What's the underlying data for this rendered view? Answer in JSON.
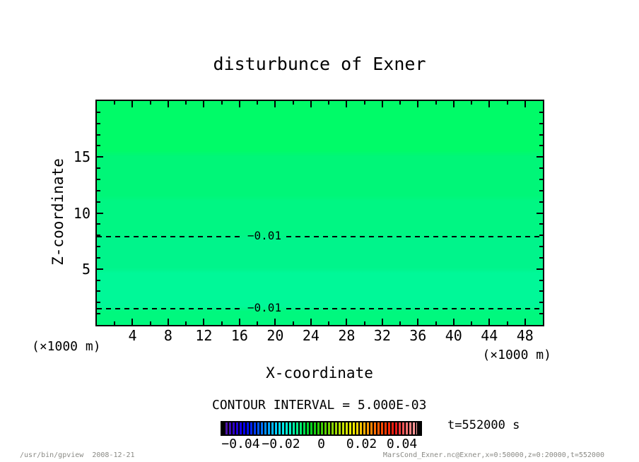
{
  "title": "disturbunce of Exner",
  "axes": {
    "x_label": "X-coordinate",
    "y_label": "Z-coordinate",
    "x_unit_left": "(×1000 m)",
    "x_unit_right": "(×1000 m)",
    "x_range": [
      0,
      50
    ],
    "y_range": [
      0,
      20
    ],
    "x_major_ticks": [
      4,
      8,
      12,
      16,
      20,
      24,
      28,
      32,
      36,
      40,
      44,
      48
    ],
    "x_minor_ticks": [
      2,
      6,
      10,
      14,
      18,
      22,
      26,
      30,
      34,
      38,
      42,
      46
    ],
    "y_major_ticks": [
      5,
      10,
      15
    ],
    "y_minor_ticks": [
      1,
      2,
      3,
      4,
      6,
      7,
      8,
      9,
      11,
      12,
      13,
      14,
      16,
      17,
      18,
      19
    ]
  },
  "chart_data": {
    "type": "heatmap",
    "title": "disturbunce of Exner",
    "xlabel": "X-coordinate (×1000 m)",
    "ylabel": "Z-coordinate (×1000 m)",
    "xlim": [
      0,
      50
    ],
    "ylim": [
      0,
      20
    ],
    "contour_interval": 0.005,
    "contour_lines": [
      {
        "level": -0.01,
        "z": 7.9,
        "label": "−0.01",
        "style": "dashed"
      },
      {
        "level": -0.01,
        "z": 1.45,
        "label": "−0.01",
        "style": "dashed"
      }
    ],
    "fill_bands": [
      {
        "z_from": 15.3,
        "z_to": 20.0,
        "color": "#00fb68"
      },
      {
        "z_from": 11.3,
        "z_to": 15.3,
        "color": "#00f678"
      },
      {
        "z_from": 7.9,
        "z_to": 11.3,
        "color": "#00f683"
      },
      {
        "z_from": 4.85,
        "z_to": 7.9,
        "color": "#00f48b"
      },
      {
        "z_from": 1.45,
        "z_to": 4.85,
        "color": "#00f898"
      },
      {
        "z_from": 0.0,
        "z_to": 1.45,
        "color": "#00f87e"
      }
    ]
  },
  "colorbar": {
    "caption": "CONTOUR INTERVAL = 5.000E-03",
    "range": [
      -0.05,
      0.05
    ],
    "tick_labels": [
      "−0.04",
      "−0.02",
      "0",
      "0.02",
      "0.04"
    ],
    "gradient_colors": [
      "#55189b",
      "#2a00d0",
      "#0000ff",
      "#0044ff",
      "#0099ff",
      "#00d5ff",
      "#00ffd0",
      "#00f07a",
      "#00d020",
      "#33cc00",
      "#7fd400",
      "#c0e000",
      "#f5ee00",
      "#ffb400",
      "#ff7000",
      "#ff3a00",
      "#e81414",
      "#ff7070",
      "#ffa3a3"
    ]
  },
  "time_label": "t=552000 s",
  "footer": {
    "left": "/usr/bin/gpview  2008-12-21",
    "right": "MarsCond_Exner.nc@Exner,x=0:50000,z=0:20000,t=552000"
  }
}
